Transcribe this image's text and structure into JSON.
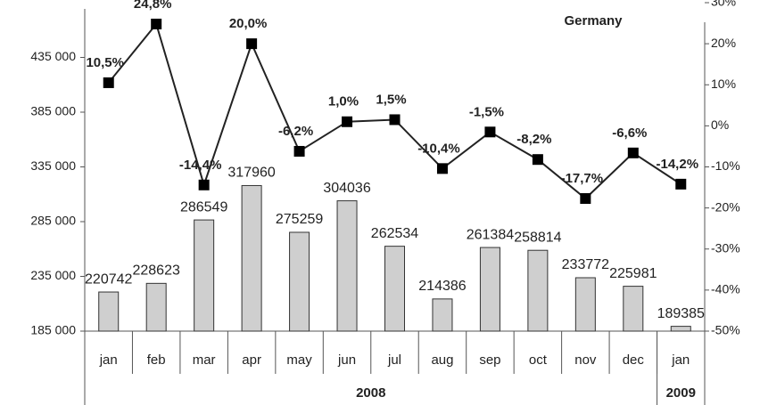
{
  "chart_data": {
    "type": "bar-line",
    "title": "Germany",
    "categories": [
      "jan",
      "feb",
      "mar",
      "apr",
      "may",
      "jun",
      "jul",
      "aug",
      "sep",
      "oct",
      "nov",
      "dec",
      "jan"
    ],
    "groups": [
      {
        "label": "2008",
        "count": 12
      },
      {
        "label": "2009",
        "count": 1
      }
    ],
    "series": [
      {
        "type": "bar",
        "color": "#cfcfcf",
        "values": [
          220742,
          228623,
          286549,
          317960,
          275259,
          304036,
          262534,
          214386,
          261384,
          258814,
          233772,
          225981,
          189385
        ]
      },
      {
        "type": "line",
        "axis": "y2",
        "color": "#222222",
        "values": [
          10.5,
          24.8,
          -14.4,
          20.0,
          -6.2,
          1.0,
          1.5,
          -10.4,
          -1.5,
          -8.2,
          -17.7,
          -6.6,
          -14.2
        ],
        "value_labels": [
          "10,5%",
          "24,8%",
          "-14,4%",
          "20,0%",
          "-6,2%",
          "1,0%",
          "1,5%",
          "-10,4%",
          "-1,5%",
          "-8,2%",
          "-17,7%",
          "-6,6%",
          "-14,2%"
        ]
      }
    ],
    "ylim": [
      185000,
      485000
    ],
    "yticks": [
      {
        "value": 185000,
        "label": "185 000"
      },
      {
        "value": 235000,
        "label": "235 000"
      },
      {
        "value": 285000,
        "label": "285 000"
      },
      {
        "value": 335000,
        "label": "335 000"
      },
      {
        "value": 385000,
        "label": "385 000"
      },
      {
        "value": 435000,
        "label": "435 000"
      }
    ],
    "y2lim": [
      -50,
      30
    ],
    "y2ticks": [
      {
        "value": -50,
        "label": "-50%"
      },
      {
        "value": -40,
        "label": "-40%"
      },
      {
        "value": -30,
        "label": "-30%"
      },
      {
        "value": -20,
        "label": "-20%"
      },
      {
        "value": -10,
        "label": "-10%"
      },
      {
        "value": 0,
        "label": "0%"
      },
      {
        "value": 10,
        "label": "10%"
      },
      {
        "value": 20,
        "label": "20%"
      },
      {
        "value": 30,
        "label": "30%"
      }
    ]
  }
}
